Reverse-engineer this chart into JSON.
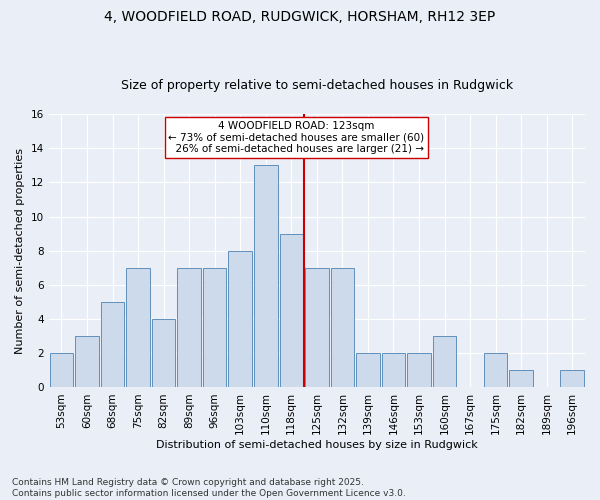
{
  "title1": "4, WOODFIELD ROAD, RUDGWICK, HORSHAM, RH12 3EP",
  "title2": "Size of property relative to semi-detached houses in Rudgwick",
  "xlabel": "Distribution of semi-detached houses by size in Rudgwick",
  "ylabel": "Number of semi-detached properties",
  "categories": [
    "53sqm",
    "60sqm",
    "68sqm",
    "75sqm",
    "82sqm",
    "89sqm",
    "96sqm",
    "103sqm",
    "110sqm",
    "118sqm",
    "125sqm",
    "132sqm",
    "139sqm",
    "146sqm",
    "153sqm",
    "160sqm",
    "167sqm",
    "175sqm",
    "182sqm",
    "189sqm",
    "196sqm"
  ],
  "values": [
    2,
    3,
    5,
    7,
    4,
    7,
    7,
    8,
    13,
    9,
    7,
    7,
    2,
    2,
    2,
    3,
    0,
    2,
    1,
    0,
    1
  ],
  "bar_color": "#cddaeb",
  "bar_edge_color": "#6090bb",
  "vline_color": "#cc0000",
  "vline_index": 10,
  "ylim": [
    0,
    16
  ],
  "yticks": [
    0,
    2,
    4,
    6,
    8,
    10,
    12,
    14,
    16
  ],
  "property_label": "4 WOODFIELD ROAD: 123sqm",
  "pct_smaller": 73,
  "n_smaller": 60,
  "pct_larger": 26,
  "n_larger": 21,
  "annotation_box_color": "#ffffff",
  "annotation_box_edge": "#cc0000",
  "footer1": "Contains HM Land Registry data © Crown copyright and database right 2025.",
  "footer2": "Contains public sector information licensed under the Open Government Licence v3.0.",
  "bg_color": "#eaeff7",
  "grid_color": "#ffffff",
  "title_fontsize": 10,
  "subtitle_fontsize": 9,
  "axis_label_fontsize": 8,
  "tick_fontsize": 7.5,
  "annotation_fontsize": 7.5,
  "footer_fontsize": 6.5
}
